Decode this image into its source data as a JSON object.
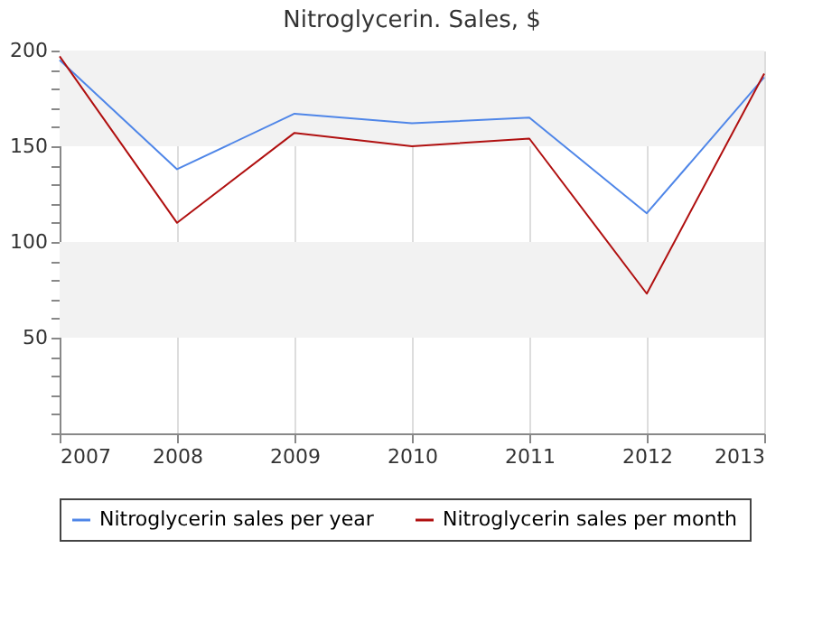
{
  "chart_data": {
    "type": "line",
    "title": "Nitroglycerin. Sales, $",
    "x": [
      2007,
      2008,
      2009,
      2010,
      2011,
      2012,
      2013
    ],
    "series": [
      {
        "name": "Nitroglycerin sales per year",
        "color": "#4f86e8",
        "values": [
          195,
          138,
          167,
          162,
          165,
          115,
          186
        ]
      },
      {
        "name": "Nitroglycerin sales per month",
        "color": "#b01010",
        "values": [
          197,
          110,
          157,
          150,
          154,
          73,
          188
        ]
      }
    ],
    "xlim": [
      2007,
      2013
    ],
    "xticks": [
      2007,
      2008,
      2009,
      2010,
      2011,
      2012,
      2013
    ],
    "ylim": [
      0,
      200
    ],
    "yticks": [
      {
        "value": 0,
        "label": null
      },
      {
        "value": 10,
        "label": null
      },
      {
        "value": 20,
        "label": null
      },
      {
        "value": 30,
        "label": null
      },
      {
        "value": 40,
        "label": null
      },
      50,
      {
        "value": 60,
        "label": null
      },
      {
        "value": 70,
        "label": null
      },
      {
        "value": 80,
        "label": null
      },
      {
        "value": 90,
        "label": null
      },
      100,
      {
        "value": 110,
        "label": null
      },
      {
        "value": 120,
        "label": null
      },
      {
        "value": 130,
        "label": null
      },
      {
        "value": 140,
        "label": null
      },
      150,
      {
        "value": 160,
        "label": null
      },
      {
        "value": 170,
        "label": null
      },
      {
        "value": 180,
        "label": null
      },
      {
        "value": 190,
        "label": null
      },
      200
    ],
    "bands": [
      {
        "axis": "y",
        "from": 150,
        "to": 200,
        "color": "#f2f2f2"
      },
      {
        "axis": "y",
        "from": 50,
        "to": 100,
        "color": "#f2f2f2"
      }
    ],
    "grid": "x",
    "legend": "bottom",
    "marker": "none",
    "line_style": "solid"
  }
}
